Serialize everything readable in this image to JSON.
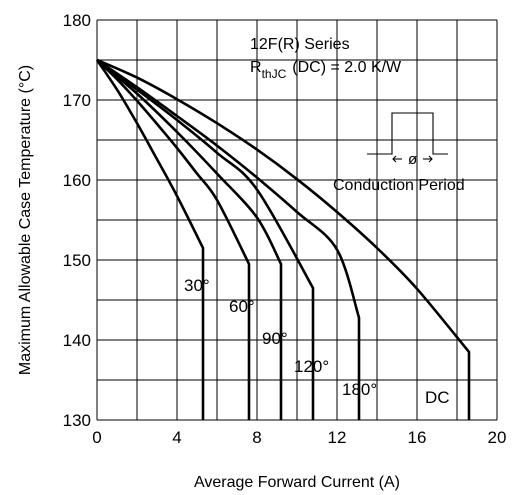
{
  "chart_data": {
    "type": "line",
    "title": "",
    "xlabel": "Average Forward Current (A)",
    "ylabel": "Maximum Allowable Case Temperature (°C)",
    "xlim": [
      0,
      20
    ],
    "ylim": [
      130,
      180
    ],
    "xticks": [
      0,
      4,
      8,
      12,
      16,
      20
    ],
    "yticks": [
      130,
      140,
      150,
      160,
      170,
      180
    ],
    "grid": true,
    "annotations": {
      "series_name": "12F(R) Series",
      "rth_symbol": "R",
      "rth_subscript": "thJC",
      "rth_value": "(DC) = 2.0 K/W",
      "waveform_label": "Conduction Period",
      "phi_symbol": "ø"
    },
    "series": [
      {
        "name": "30°",
        "x": [
          0,
          1,
          2,
          3,
          4,
          5.3,
          5.3
        ],
        "y": [
          175,
          171.3,
          167.1,
          162.6,
          158.0,
          151.5,
          130
        ]
      },
      {
        "name": "60°",
        "x": [
          0,
          1,
          2,
          3,
          4,
          5,
          6,
          7.6,
          7.6
        ],
        "y": [
          175,
          172.6,
          169.9,
          167.0,
          164.0,
          160.8,
          157.5,
          149.5,
          130
        ]
      },
      {
        "name": "90°",
        "x": [
          0,
          2,
          4,
          6,
          8,
          9.2,
          9.2
        ],
        "y": [
          175,
          170.8,
          166.0,
          160.8,
          155.3,
          149.5,
          130
        ]
      },
      {
        "name": "120°",
        "x": [
          0,
          2,
          4,
          6,
          8,
          10.8,
          10.8
        ],
        "y": [
          175,
          171.3,
          167.5,
          163.4,
          158.8,
          146.5,
          130
        ]
      },
      {
        "name": "180°",
        "x": [
          0,
          2,
          4,
          6,
          8,
          10,
          12,
          13.1,
          13.1
        ],
        "y": [
          175,
          171.6,
          168.0,
          164.3,
          160.3,
          156.0,
          151.3,
          142.8,
          130
        ]
      },
      {
        "name": "DC",
        "x": [
          0,
          2,
          4,
          6,
          8,
          10,
          12,
          14,
          16,
          18.6,
          18.6
        ],
        "y": [
          175,
          172.8,
          170.1,
          167.1,
          163.8,
          160.1,
          156.0,
          151.5,
          146.4,
          138.5,
          130
        ]
      }
    ]
  }
}
